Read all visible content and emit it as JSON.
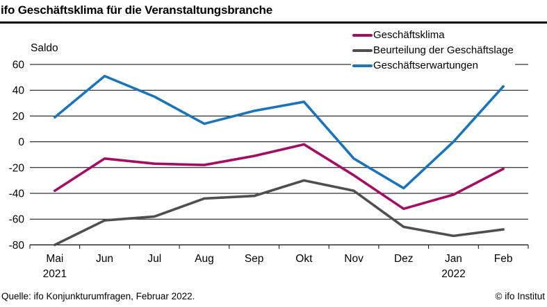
{
  "header": {
    "title": "ifo Geschäftsklima für die Veranstaltungsbranche"
  },
  "chart_data": {
    "type": "line",
    "title": "ifo Geschäftsklima für die Veranstaltungsbranche",
    "ylabel": "Saldo",
    "xlabel": "",
    "ylim": [
      -80,
      60
    ],
    "ytick_step": 20,
    "grid": true,
    "legend_position": "top-right",
    "categories": [
      "Mai",
      "Jun",
      "Jul",
      "Aug",
      "Sep",
      "Okt",
      "Nov",
      "Dez",
      "Jan",
      "Feb"
    ],
    "year_labels": [
      {
        "index": 0,
        "label": "2021"
      },
      {
        "index": 8,
        "label": "2022"
      }
    ],
    "series": [
      {
        "name": "Geschäftsklima",
        "color": "#a20e63",
        "values": [
          -38,
          -13,
          -17,
          -18,
          -11,
          -2,
          -26,
          -52,
          -41,
          -21
        ]
      },
      {
        "name": "Beurteilung der Geschäftslage",
        "color": "#4f4f4f",
        "values": [
          -80,
          -61,
          -58,
          -44,
          -42,
          -30,
          -38,
          -66,
          -73,
          -68
        ]
      },
      {
        "name": "Geschäftserwartungen",
        "color": "#1b74ba",
        "values": [
          19,
          51,
          35,
          14,
          24,
          31,
          -13,
          -36,
          0,
          43
        ]
      }
    ]
  },
  "footer": {
    "source": "Quelle: ifo Konjunkturumfragen, Februar 2022.",
    "copyright": "© ifo Institut"
  }
}
